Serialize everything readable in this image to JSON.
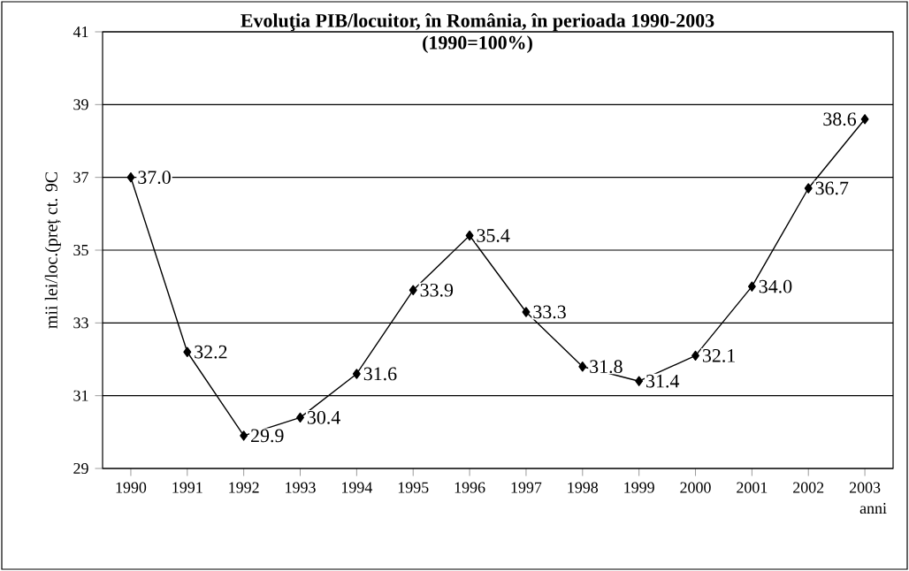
{
  "chart_data": {
    "type": "line",
    "title": "Evoluţia PIB/locuitor, în România, în perioada 1990-2003",
    "subtitle": "(1990=100%)",
    "ylabel": "mii lei/loc.(preț ct. 9C",
    "xlabel": "anni",
    "categories": [
      "1990",
      "1991",
      "1992",
      "1993",
      "1994",
      "1995",
      "1996",
      "1997",
      "1998",
      "1999",
      "2000",
      "2001",
      "2002",
      "2003"
    ],
    "series": [
      {
        "color": "#000000",
        "values": [
          37.0,
          32.2,
          29.9,
          30.4,
          31.6,
          33.9,
          35.4,
          33.3,
          31.8,
          31.4,
          32.1,
          34.0,
          36.7,
          38.6
        ],
        "value_labels": [
          "37.0",
          "32.2",
          "29.9",
          "30.4",
          "31.6",
          "33.9",
          "35.4",
          "33.3",
          "31.8",
          "31.4",
          "32.1",
          "34.0",
          "36.7",
          "38.6"
        ]
      }
    ],
    "ylim": [
      29,
      41
    ],
    "yticks": [
      29,
      31,
      33,
      35,
      37,
      39,
      41
    ],
    "grid": "y",
    "marker": "diamond",
    "line_style": "solid"
  }
}
